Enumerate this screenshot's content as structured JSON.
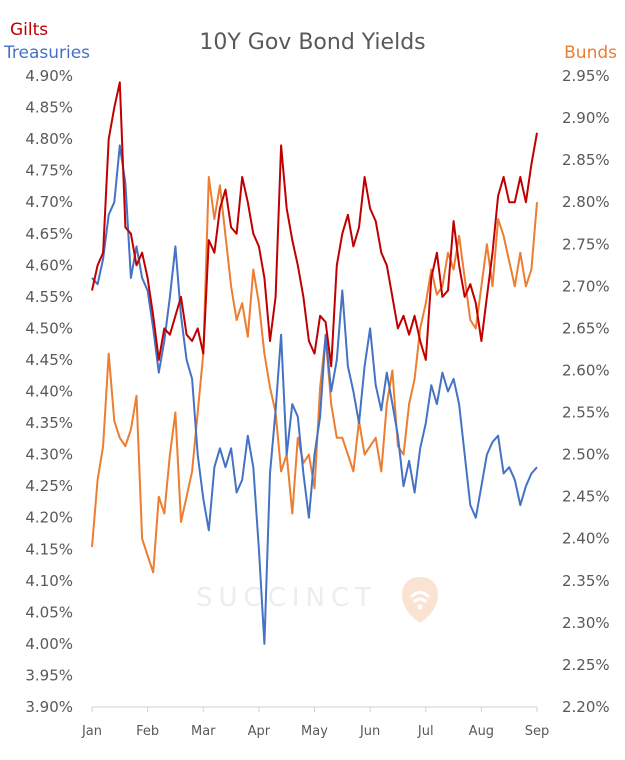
{
  "chart_data": {
    "type": "line",
    "title": "10Y Gov Bond Yields",
    "x_ticks": [
      "Jan",
      "Feb",
      "Mar",
      "Apr",
      "May",
      "Jun",
      "Jul",
      "Aug",
      "Sep"
    ],
    "left_axis": {
      "ylim": [
        3.9,
        4.9
      ],
      "ticks": [
        "4.90%",
        "4.85%",
        "4.80%",
        "4.75%",
        "4.70%",
        "4.65%",
        "4.60%",
        "4.55%",
        "4.50%",
        "4.45%",
        "4.40%",
        "4.35%",
        "4.30%",
        "4.25%",
        "4.20%",
        "4.15%",
        "4.10%",
        "4.05%",
        "4.00%",
        "3.95%",
        "3.90%"
      ]
    },
    "right_axis": {
      "ylim": [
        2.2,
        2.95
      ],
      "ticks": [
        "2.95%",
        "2.90%",
        "2.85%",
        "2.80%",
        "2.75%",
        "2.70%",
        "2.65%",
        "2.60%",
        "2.55%",
        "2.50%",
        "2.45%",
        "2.40%",
        "2.35%",
        "2.30%",
        "2.25%",
        "2.20%"
      ]
    },
    "grid": false,
    "series": [
      {
        "name": "Gilts",
        "axis": "left",
        "color": "#c00000",
        "x": [
          0,
          0.1,
          0.2,
          0.3,
          0.4,
          0.5,
          0.6,
          0.7,
          0.8,
          0.9,
          1.0,
          1.1,
          1.2,
          1.3,
          1.4,
          1.5,
          1.6,
          1.7,
          1.8,
          1.9,
          2.0,
          2.1,
          2.2,
          2.3,
          2.4,
          2.5,
          2.6,
          2.7,
          2.8,
          2.9,
          3.0,
          3.1,
          3.2,
          3.3,
          3.4,
          3.5,
          3.6,
          3.7,
          3.8,
          3.9,
          4.0,
          4.1,
          4.2,
          4.3,
          4.4,
          4.5,
          4.6,
          4.7,
          4.8,
          4.9,
          5.0,
          5.1,
          5.2,
          5.3,
          5.4,
          5.5,
          5.6,
          5.7,
          5.8,
          5.9,
          6.0,
          6.1,
          6.2,
          6.3,
          6.4,
          6.5,
          6.6,
          6.7,
          6.8,
          6.9,
          7.0,
          7.1,
          7.2,
          7.3,
          7.4,
          7.5,
          7.6,
          7.7,
          7.8,
          7.9,
          8.0
        ],
        "y": [
          4.56,
          4.6,
          4.62,
          4.8,
          4.85,
          4.89,
          4.66,
          4.65,
          4.6,
          4.62,
          4.58,
          4.52,
          4.45,
          4.5,
          4.49,
          4.52,
          4.55,
          4.49,
          4.48,
          4.5,
          4.46,
          4.64,
          4.62,
          4.69,
          4.72,
          4.66,
          4.65,
          4.74,
          4.7,
          4.65,
          4.63,
          4.58,
          4.48,
          4.55,
          4.79,
          4.69,
          4.64,
          4.6,
          4.55,
          4.48,
          4.46,
          4.52,
          4.51,
          4.44,
          4.6,
          4.65,
          4.68,
          4.63,
          4.66,
          4.74,
          4.69,
          4.67,
          4.62,
          4.6,
          4.55,
          4.5,
          4.52,
          4.49,
          4.52,
          4.48,
          4.45,
          4.58,
          4.62,
          4.55,
          4.56,
          4.67,
          4.6,
          4.55,
          4.57,
          4.54,
          4.48,
          4.55,
          4.62,
          4.71,
          4.74,
          4.7,
          4.7,
          4.74,
          4.7,
          4.76,
          4.81
        ]
      },
      {
        "name": "Treasuries",
        "axis": "left",
        "color": "#4472c4",
        "x": [
          0,
          0.1,
          0.2,
          0.3,
          0.4,
          0.5,
          0.6,
          0.7,
          0.8,
          0.9,
          1.0,
          1.1,
          1.2,
          1.3,
          1.4,
          1.5,
          1.6,
          1.7,
          1.8,
          1.9,
          2.0,
          2.1,
          2.2,
          2.3,
          2.4,
          2.5,
          2.6,
          2.7,
          2.8,
          2.9,
          3.0,
          3.1,
          3.2,
          3.3,
          3.4,
          3.5,
          3.6,
          3.7,
          3.8,
          3.9,
          4.0,
          4.1,
          4.2,
          4.3,
          4.4,
          4.5,
          4.6,
          4.7,
          4.8,
          4.9,
          5.0,
          5.1,
          5.2,
          5.3,
          5.4,
          5.5,
          5.6,
          5.7,
          5.8,
          5.9,
          6.0,
          6.1,
          6.2,
          6.3,
          6.4,
          6.5,
          6.6,
          6.7,
          6.8,
          6.9,
          7.0,
          7.1,
          7.2,
          7.3,
          7.4,
          7.5,
          7.6,
          7.7,
          7.8,
          7.9,
          8.0
        ],
        "y": [
          4.58,
          4.57,
          4.61,
          4.68,
          4.7,
          4.79,
          4.73,
          4.58,
          4.63,
          4.58,
          4.56,
          4.5,
          4.43,
          4.48,
          4.55,
          4.63,
          4.52,
          4.45,
          4.42,
          4.3,
          4.23,
          4.18,
          4.28,
          4.31,
          4.28,
          4.31,
          4.24,
          4.26,
          4.33,
          4.28,
          4.15,
          4.0,
          4.27,
          4.37,
          4.49,
          4.3,
          4.38,
          4.36,
          4.27,
          4.2,
          4.3,
          4.36,
          4.49,
          4.4,
          4.45,
          4.56,
          4.44,
          4.4,
          4.35,
          4.44,
          4.5,
          4.41,
          4.37,
          4.43,
          4.38,
          4.33,
          4.25,
          4.29,
          4.24,
          4.31,
          4.35,
          4.41,
          4.38,
          4.43,
          4.4,
          4.42,
          4.38,
          4.3,
          4.22,
          4.2,
          4.25,
          4.3,
          4.32,
          4.33,
          4.27,
          4.28,
          4.26,
          4.22,
          4.25,
          4.27,
          4.28
        ]
      },
      {
        "name": "Bunds",
        "axis": "right",
        "color": "#ed7d31",
        "x": [
          0,
          0.1,
          0.2,
          0.3,
          0.4,
          0.5,
          0.6,
          0.7,
          0.8,
          0.9,
          1.0,
          1.1,
          1.2,
          1.3,
          1.4,
          1.5,
          1.6,
          1.7,
          1.8,
          1.9,
          2.0,
          2.1,
          2.2,
          2.3,
          2.4,
          2.5,
          2.6,
          2.7,
          2.8,
          2.9,
          3.0,
          3.1,
          3.2,
          3.3,
          3.4,
          3.5,
          3.6,
          3.7,
          3.8,
          3.9,
          4.0,
          4.1,
          4.2,
          4.3,
          4.4,
          4.5,
          4.6,
          4.7,
          4.8,
          4.9,
          5.0,
          5.1,
          5.2,
          5.3,
          5.4,
          5.5,
          5.6,
          5.7,
          5.8,
          5.9,
          6.0,
          6.1,
          6.2,
          6.3,
          6.4,
          6.5,
          6.6,
          6.7,
          6.8,
          6.9,
          7.0,
          7.1,
          7.2,
          7.3,
          7.4,
          7.5,
          7.6,
          7.7,
          7.8,
          7.9,
          8.0
        ],
        "y": [
          2.39,
          2.47,
          2.51,
          2.62,
          2.54,
          2.52,
          2.51,
          2.53,
          2.57,
          2.4,
          2.38,
          2.36,
          2.45,
          2.43,
          2.5,
          2.55,
          2.42,
          2.45,
          2.48,
          2.55,
          2.62,
          2.83,
          2.78,
          2.82,
          2.76,
          2.7,
          2.66,
          2.68,
          2.64,
          2.72,
          2.68,
          2.62,
          2.58,
          2.55,
          2.48,
          2.5,
          2.43,
          2.52,
          2.49,
          2.5,
          2.46,
          2.58,
          2.64,
          2.56,
          2.52,
          2.52,
          2.5,
          2.48,
          2.54,
          2.5,
          2.51,
          2.52,
          2.48,
          2.56,
          2.6,
          2.51,
          2.5,
          2.56,
          2.59,
          2.65,
          2.68,
          2.72,
          2.69,
          2.7,
          2.74,
          2.72,
          2.76,
          2.71,
          2.66,
          2.65,
          2.7,
          2.75,
          2.7,
          2.78,
          2.76,
          2.73,
          2.7,
          2.74,
          2.7,
          2.72,
          2.8
        ]
      }
    ]
  },
  "watermark": {
    "text": "SUCCINCT",
    "icon": "wifi-shield-icon"
  }
}
